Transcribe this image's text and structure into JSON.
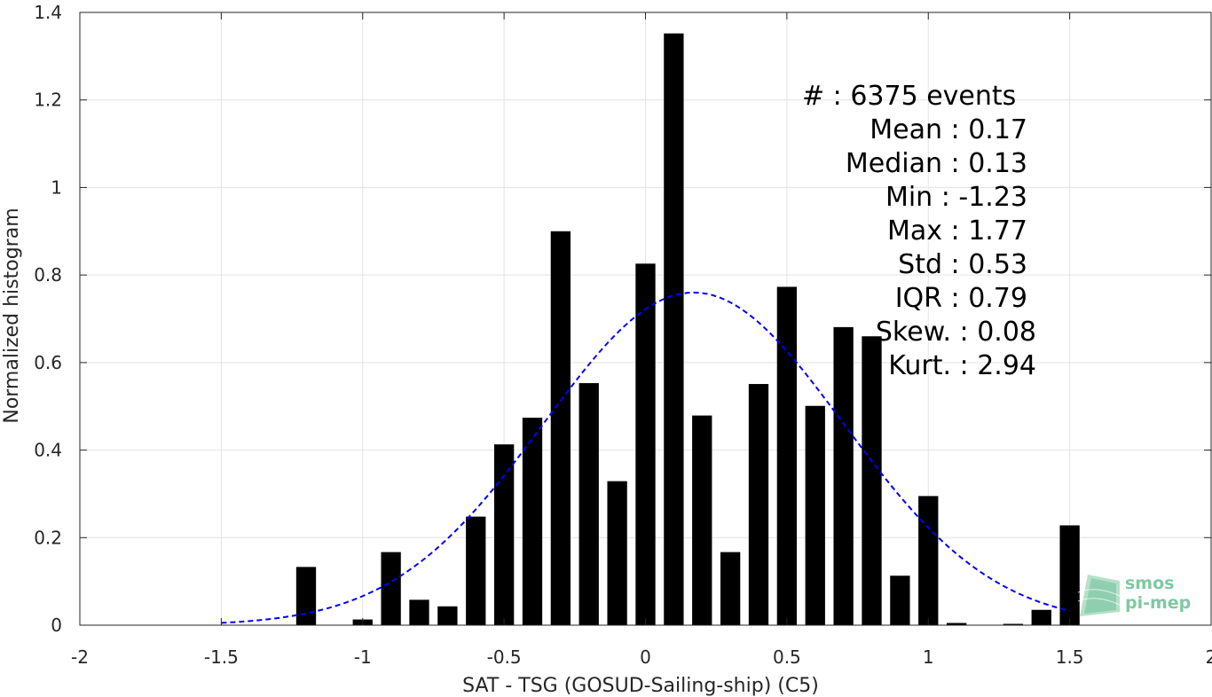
{
  "chart_data": {
    "type": "bar",
    "xlabel": "SAT - TSG (GOSUD-Sailing-ship) (C5)",
    "ylabel": "Normalized histogram",
    "xlim": [
      -2,
      2
    ],
    "ylim": [
      0,
      1.4
    ],
    "x_ticks": [
      -2,
      -1.5,
      -1,
      -0.5,
      0,
      0.5,
      1,
      1.5,
      2
    ],
    "x_tick_labels": [
      "-2",
      "-1.5",
      "-1",
      "-0.5",
      "0",
      "0.5",
      "1",
      "1.5",
      "2"
    ],
    "y_ticks": [
      0,
      0.2,
      0.4,
      0.6,
      0.8,
      1,
      1.2,
      1.4
    ],
    "y_tick_labels": [
      "0",
      "0.2",
      "0.4",
      "0.6",
      "0.8",
      "1",
      "1.2",
      "1.4"
    ],
    "grid": true,
    "bar_color": "#000000",
    "bar_width": 0.07,
    "bins": [
      {
        "x": -1.2,
        "value": 0.133
      },
      {
        "x": -1.0,
        "value": 0.013
      },
      {
        "x": -0.9,
        "value": 0.167
      },
      {
        "x": -0.8,
        "value": 0.058
      },
      {
        "x": -0.7,
        "value": 0.043
      },
      {
        "x": -0.6,
        "value": 0.248
      },
      {
        "x": -0.5,
        "value": 0.413
      },
      {
        "x": -0.4,
        "value": 0.474
      },
      {
        "x": -0.3,
        "value": 0.9
      },
      {
        "x": -0.2,
        "value": 0.553
      },
      {
        "x": -0.1,
        "value": 0.329
      },
      {
        "x": 0.0,
        "value": 0.826
      },
      {
        "x": 0.1,
        "value": 1.352
      },
      {
        "x": 0.2,
        "value": 0.479
      },
      {
        "x": 0.3,
        "value": 0.167
      },
      {
        "x": 0.4,
        "value": 0.551
      },
      {
        "x": 0.5,
        "value": 0.773
      },
      {
        "x": 0.6,
        "value": 0.501
      },
      {
        "x": 0.7,
        "value": 0.681
      },
      {
        "x": 0.8,
        "value": 0.66
      },
      {
        "x": 0.9,
        "value": 0.113
      },
      {
        "x": 1.0,
        "value": 0.295
      },
      {
        "x": 1.1,
        "value": 0.005
      },
      {
        "x": 1.3,
        "value": 0.003
      },
      {
        "x": 1.4,
        "value": 0.035
      },
      {
        "x": 1.5,
        "value": 0.228
      }
    ],
    "fit_curve": {
      "type": "gaussian",
      "mean": 0.17,
      "std": 0.53,
      "x_range": [
        -1.5,
        1.5
      ],
      "color": "#0000ff",
      "style": "dashed"
    }
  },
  "stats": [
    {
      "label": "#  : 6375 events"
    },
    {
      "label": "Mean : 0.17"
    },
    {
      "label": "Median : 0.13"
    },
    {
      "label": "Min : -1.23"
    },
    {
      "label": "Max : 1.77"
    },
    {
      "label": "Std : 0.53"
    },
    {
      "label": "IQR : 0.79"
    },
    {
      "label": "Skew. : 0.08"
    },
    {
      "label": "Kurt. : 2.94"
    }
  ],
  "logo": {
    "line1": "smos",
    "line2": "pi-mep",
    "color": "#7fc8a4"
  }
}
